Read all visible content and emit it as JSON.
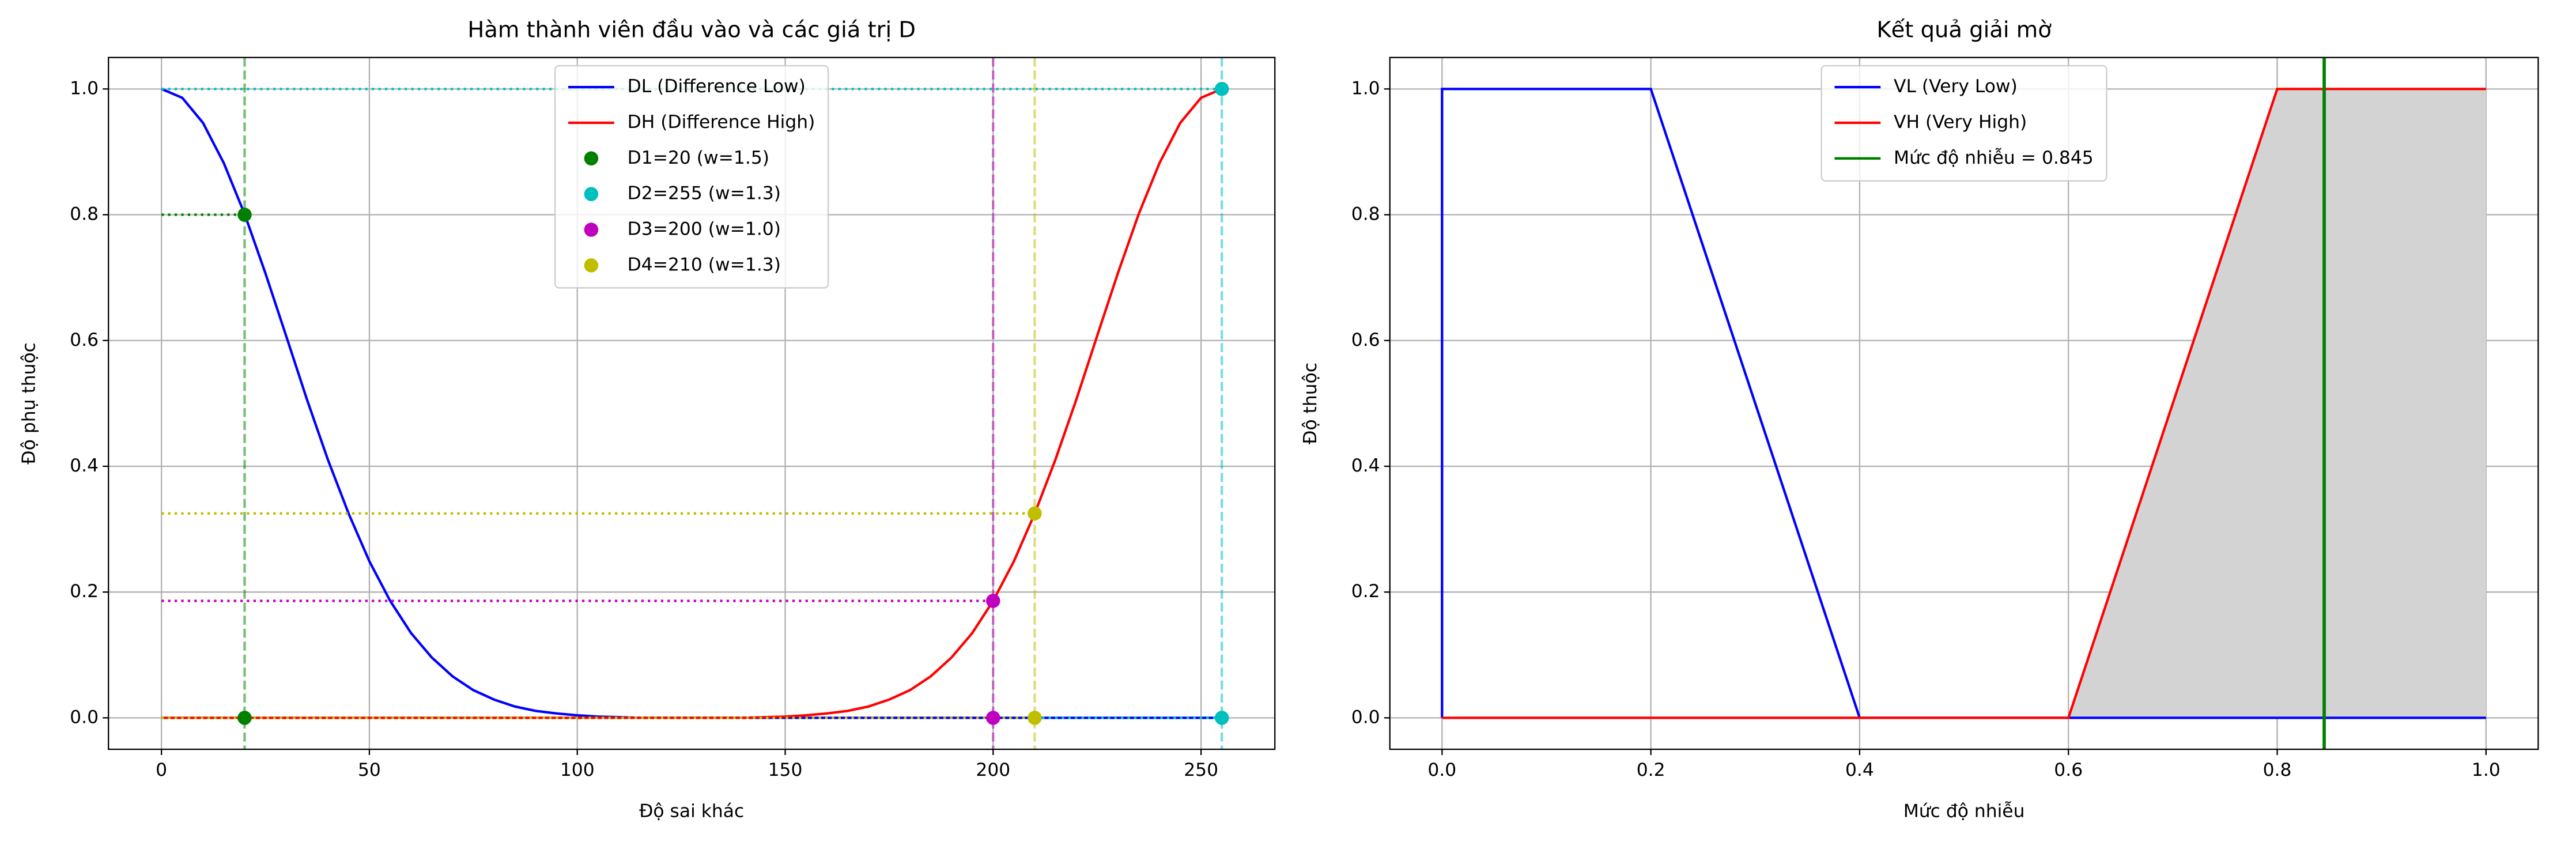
{
  "chart_data": [
    {
      "type": "line",
      "title": "Hàm thành viên đầu vào và các giá trị D",
      "xlabel": "Độ sai khác",
      "ylabel": "Độ phụ thuộc",
      "xlim": [
        -12.75,
        267.75
      ],
      "ylim": [
        -0.05,
        1.05
      ],
      "xticks": [
        0,
        50,
        100,
        150,
        200,
        250
      ],
      "yticks": [
        {
          "value": 0,
          "label": "0.0"
        },
        0.2,
        0.4,
        0.6,
        0.8,
        {
          "value": 1,
          "label": "1.0"
        }
      ],
      "grid": true,
      "legend": "upper center",
      "series": [
        {
          "name": "DL (Difference Low)",
          "color": "#0000ff",
          "x": [
            0,
            5,
            10,
            15,
            20,
            25,
            30,
            35,
            40,
            45,
            50,
            55,
            60,
            65,
            70,
            75,
            80,
            85,
            90,
            95,
            100,
            105,
            110,
            115,
            120,
            125,
            130,
            135,
            140,
            145,
            150,
            155,
            160,
            165,
            170,
            175,
            180,
            185,
            190,
            195,
            200,
            205,
            210,
            215,
            220,
            225,
            230,
            235,
            240,
            245,
            250,
            255
          ],
          "values": [
            1,
            0.986,
            0.946,
            0.882,
            0.801,
            0.707,
            0.607,
            0.506,
            0.411,
            0.325,
            0.249,
            0.186,
            0.135,
            0.096,
            0.066,
            0.044,
            0.029,
            0.018,
            0.011,
            0.007,
            0.004,
            0.002,
            0.001,
            0,
            0,
            0,
            0,
            0,
            0,
            0,
            0,
            0,
            0,
            0,
            0,
            0,
            0,
            0,
            0,
            0,
            0,
            0,
            0,
            0,
            0,
            0,
            0,
            0,
            0,
            0,
            0,
            0
          ]
        },
        {
          "name": "DH (Difference High)",
          "color": "#ff0000",
          "x": [
            0,
            5,
            10,
            15,
            20,
            25,
            30,
            35,
            40,
            45,
            50,
            55,
            60,
            65,
            70,
            75,
            80,
            85,
            90,
            95,
            100,
            105,
            110,
            115,
            120,
            125,
            130,
            135,
            140,
            145,
            150,
            155,
            160,
            165,
            170,
            175,
            180,
            185,
            190,
            195,
            200,
            205,
            210,
            215,
            220,
            225,
            230,
            235,
            240,
            245,
            250,
            255
          ],
          "values": [
            0,
            0,
            0,
            0,
            0,
            0,
            0,
            0,
            0,
            0,
            0,
            0,
            0,
            0,
            0,
            0,
            0,
            0,
            0,
            0,
            0,
            0,
            0,
            0,
            0,
            0,
            0,
            0,
            0,
            0.001,
            0.002,
            0.004,
            0.007,
            0.011,
            0.018,
            0.029,
            0.044,
            0.066,
            0.096,
            0.135,
            0.186,
            0.249,
            0.325,
            0.411,
            0.506,
            0.607,
            0.707,
            0.801,
            0.882,
            0.946,
            0.986,
            1
          ]
        },
        {
          "name": "D1=20 (w=1.5)",
          "color": "#008000",
          "style": "points",
          "x": [
            20,
            20
          ],
          "values": [
            0.8,
            0
          ]
        },
        {
          "name": "D2=255 (w=1.3)",
          "color": "#00bfbf",
          "style": "points",
          "x": [
            255,
            255
          ],
          "values": [
            1,
            0
          ]
        },
        {
          "name": "D3=200 (w=1.0)",
          "color": "#bf00bf",
          "style": "points",
          "x": [
            200,
            200
          ],
          "values": [
            0.186,
            0
          ]
        },
        {
          "name": "D4=210 (w=1.3)",
          "color": "#bfbf00",
          "style": "points",
          "x": [
            210,
            210
          ],
          "values": [
            0.325,
            0
          ]
        }
      ]
    },
    {
      "type": "line",
      "title": "Kết quả giải mờ",
      "xlabel": "Mức độ nhiễu",
      "ylabel": "Độ thuộc",
      "xlim": [
        -0.05,
        1.05
      ],
      "ylim": [
        -0.05,
        1.05
      ],
      "xticks": [
        {
          "value": 0,
          "label": "0.0"
        },
        0.2,
        0.4,
        0.6,
        0.8,
        {
          "value": 1,
          "label": "1.0"
        }
      ],
      "yticks": [
        {
          "value": 0,
          "label": "0.0"
        },
        0.2,
        0.4,
        0.6,
        0.8,
        {
          "value": 1,
          "label": "1.0"
        }
      ],
      "grid": true,
      "legend": "upper center",
      "series": [
        {
          "name": "VL (Very Low)",
          "color": "#0000ff",
          "x": [
            0,
            0,
            0.2,
            0.4,
            1
          ],
          "values": [
            0,
            1,
            1,
            0,
            0
          ]
        },
        {
          "name": "VH (Very High)",
          "color": "#ff0000",
          "fill": "#d3d3d3",
          "x": [
            0,
            0.6,
            0.8,
            1
          ],
          "values": [
            0,
            0,
            1,
            1
          ]
        }
      ],
      "vlines": [
        {
          "name": "Mức độ nhiễu = 0.845",
          "color": "#008000",
          "x": 0.845
        }
      ]
    }
  ]
}
